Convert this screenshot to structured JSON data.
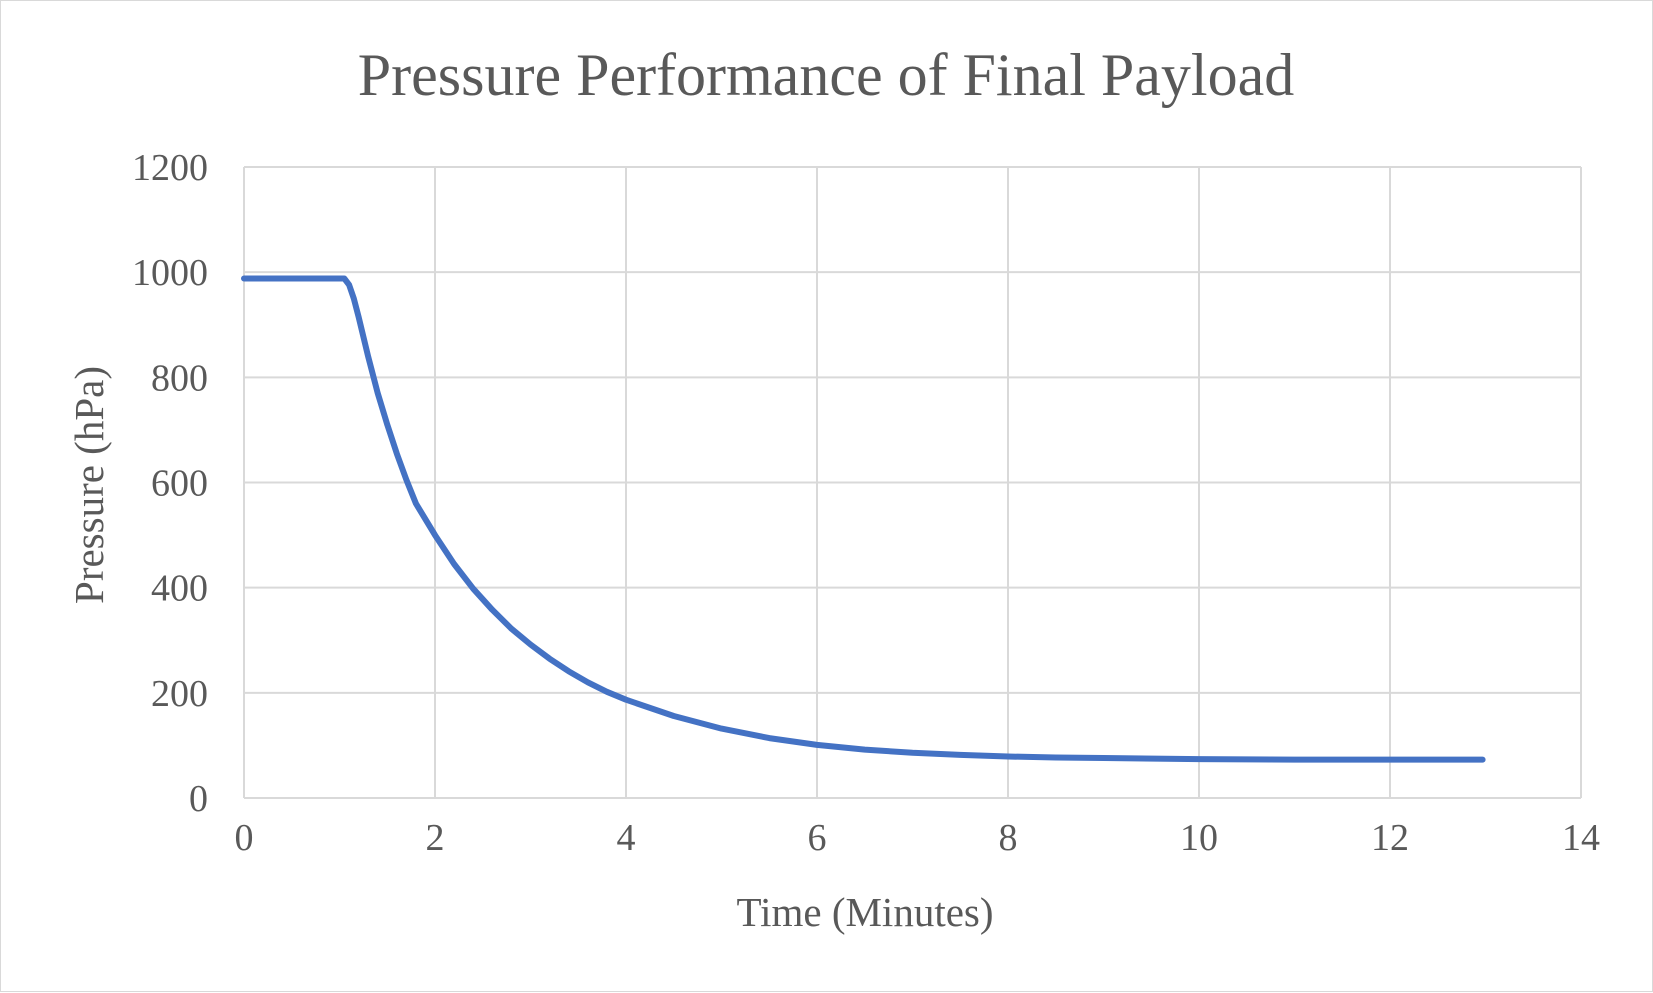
{
  "chart_data": {
    "type": "line",
    "title": "Pressure Performance of Final Payload",
    "xlabel": "Time (Minutes)",
    "ylabel": "Pressure (hPa)",
    "xlim": [
      0,
      14
    ],
    "ylim": [
      0,
      1200
    ],
    "xticks": [
      "0",
      "2",
      "4",
      "6",
      "8",
      "10",
      "12",
      "14"
    ],
    "yticks": [
      "0",
      "200",
      "400",
      "600",
      "800",
      "1000",
      "1200"
    ],
    "grid": true,
    "legend": "none",
    "series_color": "#4472c4",
    "series": [
      {
        "x": [
          0,
          0.5,
          1.05,
          1.1,
          1.15,
          1.2,
          1.3,
          1.4,
          1.5,
          1.6,
          1.7,
          1.8,
          2.0,
          2.2,
          2.4,
          2.6,
          2.8,
          3.0,
          3.2,
          3.4,
          3.6,
          3.8,
          4.0,
          4.5,
          5.0,
          5.5,
          6.0,
          6.5,
          7.0,
          7.5,
          8.0,
          8.5,
          9.0,
          10.0,
          11.0,
          12.0,
          12.97
        ],
        "y": [
          988,
          988,
          988,
          976,
          950,
          915,
          840,
          770,
          710,
          655,
          605,
          560,
          500,
          445,
          398,
          358,
          322,
          292,
          265,
          241,
          220,
          202,
          187,
          156,
          132,
          114,
          101,
          92,
          86,
          82,
          79,
          77,
          76,
          74,
          73,
          73,
          73
        ]
      }
    ]
  }
}
